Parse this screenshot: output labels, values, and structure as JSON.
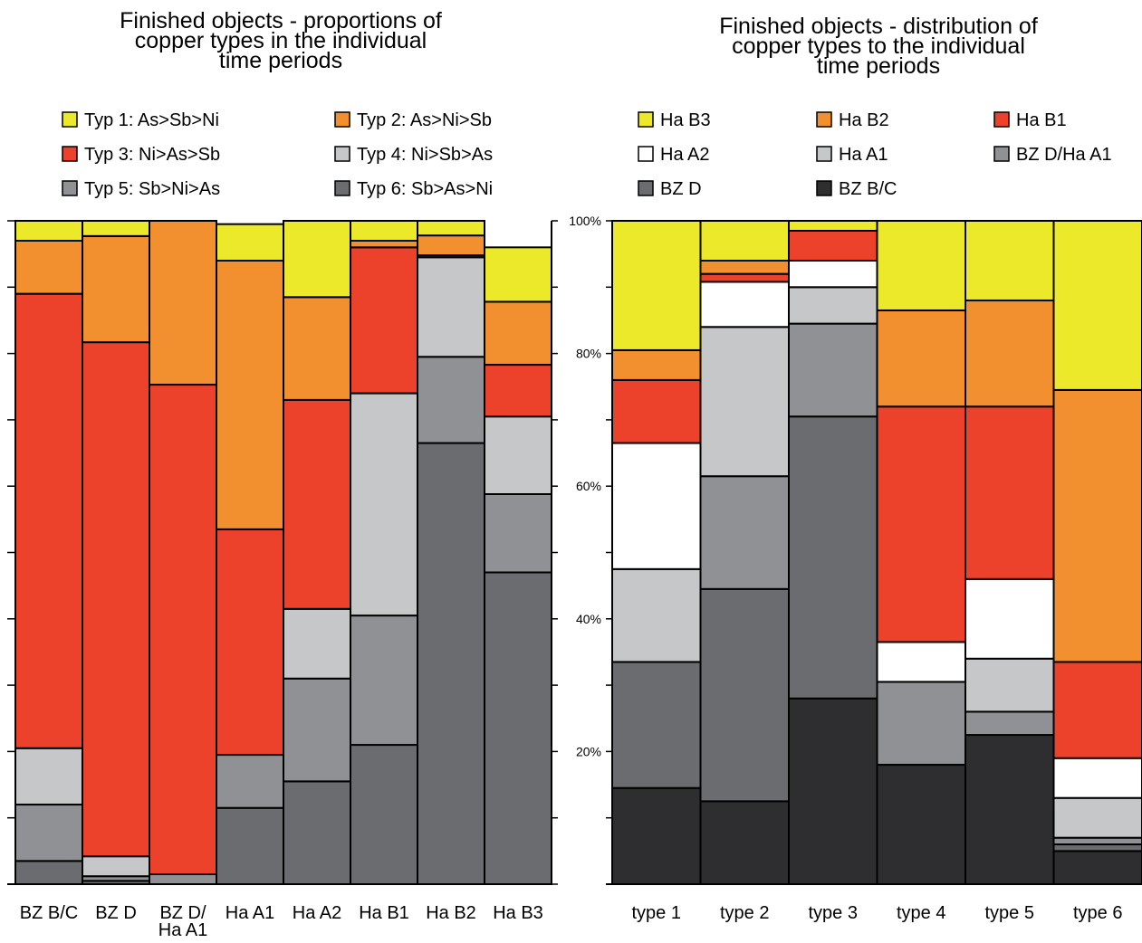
{
  "chart_data": [
    {
      "type": "bar",
      "stacked": true,
      "normalized": true,
      "title": "Finished objects - proportions of\ncopper types in the individual\ntime periods",
      "categories": [
        "BZ B/C",
        "BZ D",
        "BZ D/\nHa A1",
        "Ha A1",
        "Ha A2",
        "Ha B1",
        "Ha B2",
        "Ha B3"
      ],
      "ylim": [
        0,
        100
      ],
      "legend_position": "top",
      "series": [
        {
          "name": "Typ 6: Sb>As>Ni",
          "color": "#6b6c6f",
          "values": [
            3.5,
            0.5,
            0,
            11.5,
            15.5,
            21,
            66.5,
            47
          ]
        },
        {
          "name": "Typ 5: Sb>Ni>As",
          "color": "#8f9195",
          "values": [
            8.5,
            0.7,
            1.5,
            8,
            15.5,
            19.5,
            13,
            11.8
          ]
        },
        {
          "name": "Typ 4: Ni>Sb>As",
          "color": "#c6c7c9",
          "values": [
            8.5,
            3,
            0,
            0,
            10.5,
            33.5,
            15,
            11.7
          ]
        },
        {
          "name": "Typ 3: Ni>As>Sb",
          "color": "#ec412b",
          "values": [
            68.5,
            77.5,
            73.8,
            34,
            31.5,
            22,
            0.3,
            7.8
          ]
        },
        {
          "name": "Typ 2: As>Ni>Sb",
          "color": "#f28f2e",
          "values": [
            8,
            16,
            24.7,
            40.5,
            15.5,
            1,
            3,
            9.5
          ]
        },
        {
          "name": "Typ 1: As>Sb>Ni",
          "color": "#ece82a",
          "values": [
            3,
            2.3,
            0,
            5.5,
            11.5,
            3,
            2.2,
            8.2
          ]
        }
      ]
    },
    {
      "type": "bar",
      "stacked": true,
      "normalized": true,
      "title": "Finished objects - distribution of\ncopper types to the individual\ntime periods",
      "categories": [
        "type 1",
        "type 2",
        "type 3",
        "type 4",
        "type 5",
        "type 6"
      ],
      "ylim": [
        0,
        100
      ],
      "yticks": [
        "20%",
        "40%",
        "60%",
        "80%",
        "100%"
      ],
      "legend_position": "top",
      "series": [
        {
          "name": "BZ B/C",
          "color": "#2e2e30",
          "values": [
            14.5,
            12.5,
            28,
            18,
            22.5,
            5
          ]
        },
        {
          "name": "BZ D",
          "color": "#6b6c6f",
          "values": [
            19,
            32,
            42.5,
            0,
            0,
            1
          ]
        },
        {
          "name": "BZ D/Ha A1",
          "color": "#8f9195",
          "values": [
            0,
            17,
            14,
            12.5,
            3.5,
            1
          ]
        },
        {
          "name": "Ha A1",
          "color": "#c6c7c9",
          "values": [
            14,
            22.5,
            5.5,
            0,
            8,
            6
          ]
        },
        {
          "name": "Ha A2",
          "color": "#ffffff",
          "values": [
            19,
            6.8,
            4,
            6,
            12,
            6
          ]
        },
        {
          "name": "Ha B1",
          "color": "#ec412b",
          "values": [
            9.5,
            1.2,
            4.5,
            35.5,
            26,
            14.5
          ]
        },
        {
          "name": "Ha B2",
          "color": "#f28f2e",
          "values": [
            4.5,
            2,
            0,
            14.5,
            16,
            41
          ]
        },
        {
          "name": "Ha B3",
          "color": "#ece82a",
          "values": [
            19.5,
            6,
            1.5,
            13.5,
            12,
            25.5
          ]
        }
      ]
    }
  ]
}
